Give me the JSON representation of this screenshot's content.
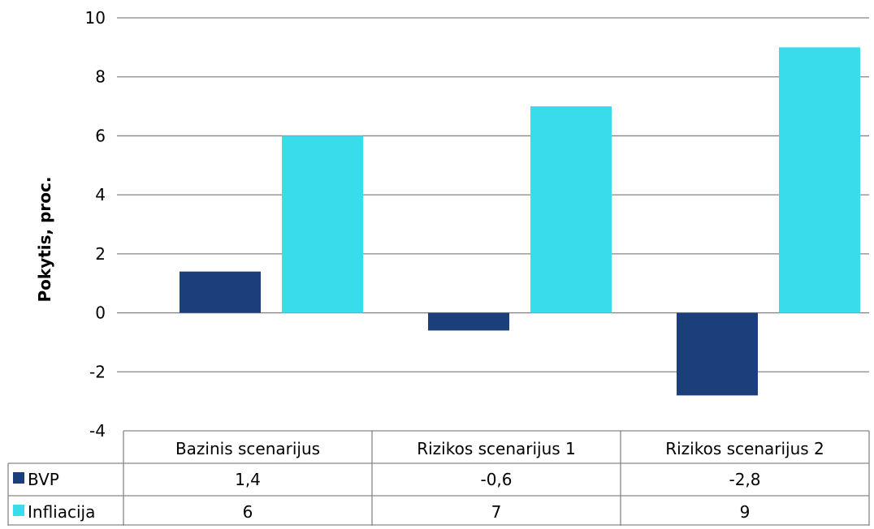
{
  "chart_data": {
    "type": "bar",
    "title": "",
    "ylabel": "Pokytis, proc.",
    "ylim": [
      -4,
      10
    ],
    "yticks": [
      -4,
      -2,
      0,
      2,
      4,
      6,
      8,
      10
    ],
    "ytick_labels": [
      "-4",
      "-2",
      "0",
      "2",
      "4",
      "6",
      "8",
      "10"
    ],
    "grid": true,
    "legend": "data-table",
    "categories": [
      "Bazinis scenarijus",
      "Rizikos scenarijus 1",
      "Rizikos scenarijus 2"
    ],
    "series": [
      {
        "name": "BVP",
        "color": "#1b3f7a",
        "values": [
          1.4,
          -0.6,
          -2.8
        ],
        "labels": [
          "1,4",
          "-0,6",
          "-2,8"
        ]
      },
      {
        "name": "Infliacija",
        "color": "#38dcea",
        "values": [
          6,
          7,
          9
        ],
        "labels": [
          "6",
          "7",
          "9"
        ]
      }
    ]
  }
}
